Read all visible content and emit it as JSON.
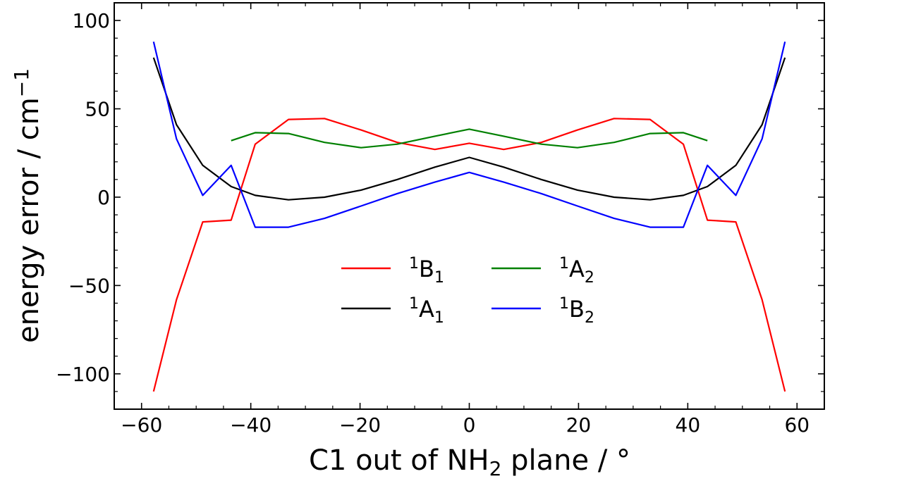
{
  "chart_data": {
    "type": "line",
    "title": "",
    "xlabel": {
      "pre": "C1 out of NH",
      "sub": "2",
      "post": " plane / °"
    },
    "ylabel": {
      "text": "energy error / cm",
      "sup": "−1"
    },
    "xlim": [
      -65,
      65
    ],
    "ylim": [
      -120,
      110
    ],
    "xticks": [
      -60,
      -40,
      -20,
      0,
      20,
      40,
      60
    ],
    "xtick_labels": [
      "−60",
      "−40",
      "−20",
      "0",
      "20",
      "40",
      "60"
    ],
    "yticks": [
      -100,
      -50,
      0,
      50,
      100
    ],
    "ytick_labels": [
      "−100",
      "−50",
      "0",
      "50",
      "100"
    ],
    "grid": false,
    "legend_position": "center",
    "series": [
      {
        "name": "1B1",
        "sup": "1",
        "base": "B",
        "sub": "1",
        "color": "#ff0000",
        "x": [
          -57.8,
          -53.6,
          -48.8,
          -43.6,
          -39.2,
          -33.1,
          -26.5,
          -19.8,
          -13.2,
          -6.3,
          0,
          6.3,
          13.2,
          19.8,
          26.5,
          33.1,
          39.2,
          43.6,
          48.8,
          53.6,
          57.8
        ],
        "y": [
          -110,
          -58,
          -14,
          -13,
          30,
          44,
          44.5,
          38,
          31,
          27,
          30.5,
          27,
          31,
          38,
          44.5,
          44,
          30,
          -13,
          -14,
          -58,
          -110
        ]
      },
      {
        "name": "1A1",
        "sup": "1",
        "base": "A",
        "sub": "1",
        "color": "#000000",
        "x": [
          -57.8,
          -53.6,
          -48.8,
          -43.6,
          -39.2,
          -33.1,
          -26.5,
          -19.8,
          -13.2,
          -6.3,
          0,
          6.3,
          13.2,
          19.8,
          26.5,
          33.1,
          39.2,
          43.6,
          48.8,
          53.6,
          57.8
        ],
        "y": [
          79,
          41,
          18,
          6,
          1,
          -1.5,
          0,
          4,
          10,
          17,
          22.5,
          17,
          10,
          4,
          0,
          -1.5,
          1,
          6,
          18,
          41,
          79
        ]
      },
      {
        "name": "1A2",
        "sup": "1",
        "base": "A",
        "sub": "2",
        "color": "#008000",
        "x": [
          -43.6,
          -39.2,
          -33.1,
          -26.5,
          -19.8,
          -13.2,
          -6.3,
          0,
          6.3,
          13.2,
          19.8,
          26.5,
          33.1,
          39.2,
          43.6
        ],
        "y": [
          32,
          36.5,
          36,
          31,
          28,
          30,
          34.5,
          38.5,
          34.5,
          30,
          28,
          31,
          36,
          36.5,
          32
        ]
      },
      {
        "name": "1B2",
        "sup": "1",
        "base": "B",
        "sub": "2",
        "color": "#0000ff",
        "x": [
          -57.8,
          -53.6,
          -48.8,
          -43.6,
          -39.2,
          -33.1,
          -26.5,
          -19.8,
          -13.2,
          -6.3,
          0,
          6.3,
          13.2,
          19.8,
          26.5,
          33.1,
          39.2,
          43.6,
          48.8,
          53.6,
          57.8
        ],
        "y": [
          88,
          33,
          1,
          18,
          -17,
          -17,
          -12,
          -5,
          2,
          8.5,
          14,
          8.5,
          2,
          -5,
          -12,
          -17,
          -17,
          18,
          1,
          33,
          88
        ]
      }
    ]
  }
}
